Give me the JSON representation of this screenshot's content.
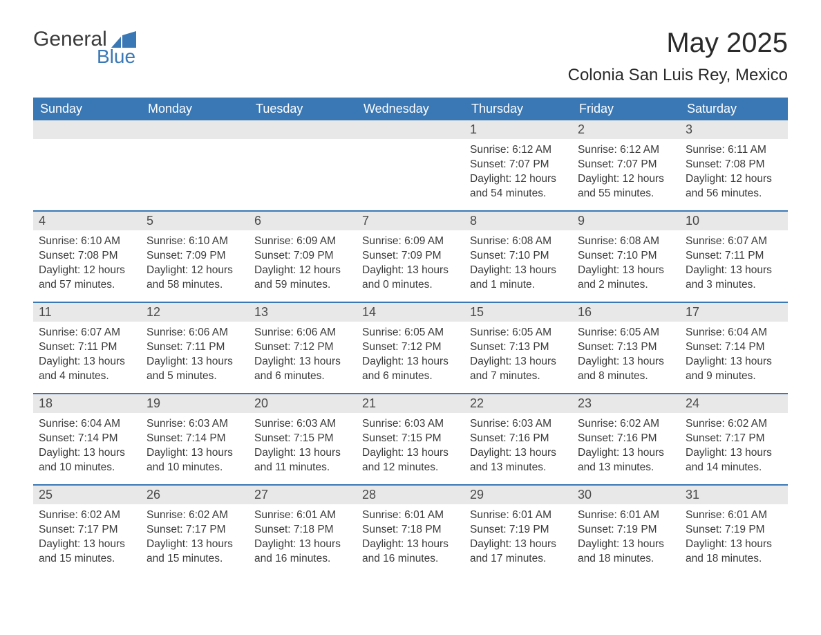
{
  "logo": {
    "text_general": "General",
    "text_blue": "Blue"
  },
  "header": {
    "month_title": "May 2025",
    "location": "Colonia San Luis Rey, Mexico"
  },
  "colors": {
    "header_bg": "#3a78b5",
    "header_text": "#ffffff",
    "daynum_bg": "#e8e8e8",
    "body_text": "#3a3a3a",
    "rule": "#3a78b5"
  },
  "day_names": [
    "Sunday",
    "Monday",
    "Tuesday",
    "Wednesday",
    "Thursday",
    "Friday",
    "Saturday"
  ],
  "weeks": [
    [
      {
        "day": "",
        "sunrise": "",
        "sunset": "",
        "daylight1": "",
        "daylight2": ""
      },
      {
        "day": "",
        "sunrise": "",
        "sunset": "",
        "daylight1": "",
        "daylight2": ""
      },
      {
        "day": "",
        "sunrise": "",
        "sunset": "",
        "daylight1": "",
        "daylight2": ""
      },
      {
        "day": "",
        "sunrise": "",
        "sunset": "",
        "daylight1": "",
        "daylight2": ""
      },
      {
        "day": "1",
        "sunrise": "Sunrise: 6:12 AM",
        "sunset": "Sunset: 7:07 PM",
        "daylight1": "Daylight: 12 hours",
        "daylight2": "and 54 minutes."
      },
      {
        "day": "2",
        "sunrise": "Sunrise: 6:12 AM",
        "sunset": "Sunset: 7:07 PM",
        "daylight1": "Daylight: 12 hours",
        "daylight2": "and 55 minutes."
      },
      {
        "day": "3",
        "sunrise": "Sunrise: 6:11 AM",
        "sunset": "Sunset: 7:08 PM",
        "daylight1": "Daylight: 12 hours",
        "daylight2": "and 56 minutes."
      }
    ],
    [
      {
        "day": "4",
        "sunrise": "Sunrise: 6:10 AM",
        "sunset": "Sunset: 7:08 PM",
        "daylight1": "Daylight: 12 hours",
        "daylight2": "and 57 minutes."
      },
      {
        "day": "5",
        "sunrise": "Sunrise: 6:10 AM",
        "sunset": "Sunset: 7:09 PM",
        "daylight1": "Daylight: 12 hours",
        "daylight2": "and 58 minutes."
      },
      {
        "day": "6",
        "sunrise": "Sunrise: 6:09 AM",
        "sunset": "Sunset: 7:09 PM",
        "daylight1": "Daylight: 12 hours",
        "daylight2": "and 59 minutes."
      },
      {
        "day": "7",
        "sunrise": "Sunrise: 6:09 AM",
        "sunset": "Sunset: 7:09 PM",
        "daylight1": "Daylight: 13 hours",
        "daylight2": "and 0 minutes."
      },
      {
        "day": "8",
        "sunrise": "Sunrise: 6:08 AM",
        "sunset": "Sunset: 7:10 PM",
        "daylight1": "Daylight: 13 hours",
        "daylight2": "and 1 minute."
      },
      {
        "day": "9",
        "sunrise": "Sunrise: 6:08 AM",
        "sunset": "Sunset: 7:10 PM",
        "daylight1": "Daylight: 13 hours",
        "daylight2": "and 2 minutes."
      },
      {
        "day": "10",
        "sunrise": "Sunrise: 6:07 AM",
        "sunset": "Sunset: 7:11 PM",
        "daylight1": "Daylight: 13 hours",
        "daylight2": "and 3 minutes."
      }
    ],
    [
      {
        "day": "11",
        "sunrise": "Sunrise: 6:07 AM",
        "sunset": "Sunset: 7:11 PM",
        "daylight1": "Daylight: 13 hours",
        "daylight2": "and 4 minutes."
      },
      {
        "day": "12",
        "sunrise": "Sunrise: 6:06 AM",
        "sunset": "Sunset: 7:11 PM",
        "daylight1": "Daylight: 13 hours",
        "daylight2": "and 5 minutes."
      },
      {
        "day": "13",
        "sunrise": "Sunrise: 6:06 AM",
        "sunset": "Sunset: 7:12 PM",
        "daylight1": "Daylight: 13 hours",
        "daylight2": "and 6 minutes."
      },
      {
        "day": "14",
        "sunrise": "Sunrise: 6:05 AM",
        "sunset": "Sunset: 7:12 PM",
        "daylight1": "Daylight: 13 hours",
        "daylight2": "and 6 minutes."
      },
      {
        "day": "15",
        "sunrise": "Sunrise: 6:05 AM",
        "sunset": "Sunset: 7:13 PM",
        "daylight1": "Daylight: 13 hours",
        "daylight2": "and 7 minutes."
      },
      {
        "day": "16",
        "sunrise": "Sunrise: 6:05 AM",
        "sunset": "Sunset: 7:13 PM",
        "daylight1": "Daylight: 13 hours",
        "daylight2": "and 8 minutes."
      },
      {
        "day": "17",
        "sunrise": "Sunrise: 6:04 AM",
        "sunset": "Sunset: 7:14 PM",
        "daylight1": "Daylight: 13 hours",
        "daylight2": "and 9 minutes."
      }
    ],
    [
      {
        "day": "18",
        "sunrise": "Sunrise: 6:04 AM",
        "sunset": "Sunset: 7:14 PM",
        "daylight1": "Daylight: 13 hours",
        "daylight2": "and 10 minutes."
      },
      {
        "day": "19",
        "sunrise": "Sunrise: 6:03 AM",
        "sunset": "Sunset: 7:14 PM",
        "daylight1": "Daylight: 13 hours",
        "daylight2": "and 10 minutes."
      },
      {
        "day": "20",
        "sunrise": "Sunrise: 6:03 AM",
        "sunset": "Sunset: 7:15 PM",
        "daylight1": "Daylight: 13 hours",
        "daylight2": "and 11 minutes."
      },
      {
        "day": "21",
        "sunrise": "Sunrise: 6:03 AM",
        "sunset": "Sunset: 7:15 PM",
        "daylight1": "Daylight: 13 hours",
        "daylight2": "and 12 minutes."
      },
      {
        "day": "22",
        "sunrise": "Sunrise: 6:03 AM",
        "sunset": "Sunset: 7:16 PM",
        "daylight1": "Daylight: 13 hours",
        "daylight2": "and 13 minutes."
      },
      {
        "day": "23",
        "sunrise": "Sunrise: 6:02 AM",
        "sunset": "Sunset: 7:16 PM",
        "daylight1": "Daylight: 13 hours",
        "daylight2": "and 13 minutes."
      },
      {
        "day": "24",
        "sunrise": "Sunrise: 6:02 AM",
        "sunset": "Sunset: 7:17 PM",
        "daylight1": "Daylight: 13 hours",
        "daylight2": "and 14 minutes."
      }
    ],
    [
      {
        "day": "25",
        "sunrise": "Sunrise: 6:02 AM",
        "sunset": "Sunset: 7:17 PM",
        "daylight1": "Daylight: 13 hours",
        "daylight2": "and 15 minutes."
      },
      {
        "day": "26",
        "sunrise": "Sunrise: 6:02 AM",
        "sunset": "Sunset: 7:17 PM",
        "daylight1": "Daylight: 13 hours",
        "daylight2": "and 15 minutes."
      },
      {
        "day": "27",
        "sunrise": "Sunrise: 6:01 AM",
        "sunset": "Sunset: 7:18 PM",
        "daylight1": "Daylight: 13 hours",
        "daylight2": "and 16 minutes."
      },
      {
        "day": "28",
        "sunrise": "Sunrise: 6:01 AM",
        "sunset": "Sunset: 7:18 PM",
        "daylight1": "Daylight: 13 hours",
        "daylight2": "and 16 minutes."
      },
      {
        "day": "29",
        "sunrise": "Sunrise: 6:01 AM",
        "sunset": "Sunset: 7:19 PM",
        "daylight1": "Daylight: 13 hours",
        "daylight2": "and 17 minutes."
      },
      {
        "day": "30",
        "sunrise": "Sunrise: 6:01 AM",
        "sunset": "Sunset: 7:19 PM",
        "daylight1": "Daylight: 13 hours",
        "daylight2": "and 18 minutes."
      },
      {
        "day": "31",
        "sunrise": "Sunrise: 6:01 AM",
        "sunset": "Sunset: 7:19 PM",
        "daylight1": "Daylight: 13 hours",
        "daylight2": "and 18 minutes."
      }
    ]
  ]
}
